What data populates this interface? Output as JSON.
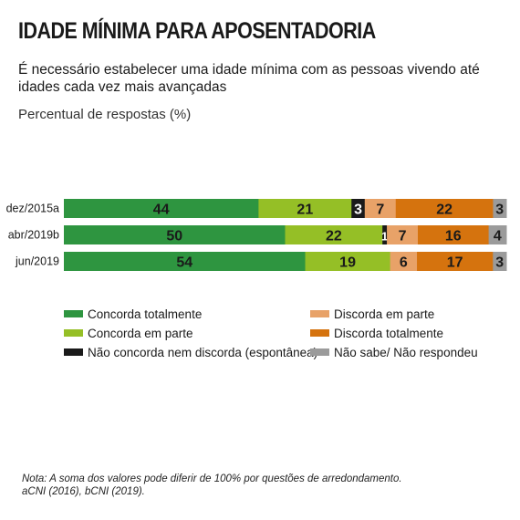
{
  "title": "IDADE MÍNIMA PARA APOSENTADORIA",
  "subtitle": "É necessário estabelecer uma idade mínima com as pessoas vivendo até idades cada vez mais avançadas",
  "unit_label": "Percentual de respostas (%)",
  "note": {
    "line1": "Nota: A soma dos valores pode diferir de 100% por questões de arredondamento.",
    "line2": "aCNI (2016), bCNI (2019)."
  },
  "chart_data": {
    "type": "bar",
    "orientation": "horizontal",
    "stacked": true,
    "categories": [
      "dez/2015a",
      "abr/2019b",
      "jun/2019"
    ],
    "series": [
      {
        "name": "Concorda totalmente",
        "color": "#2e9540",
        "values": [
          44,
          50,
          54
        ]
      },
      {
        "name": "Concorda em parte",
        "color": "#95bf26",
        "values": [
          21,
          22,
          19
        ]
      },
      {
        "name": "Não concorda nem discorda (espontânea)",
        "color": "#1a1a1a",
        "values": [
          3,
          1,
          0
        ]
      },
      {
        "name": "Discorda em parte",
        "color": "#e8a268",
        "values": [
          7,
          7,
          6
        ]
      },
      {
        "name": "Discorda totalmente",
        "color": "#d5730e",
        "values": [
          22,
          16,
          17
        ]
      },
      {
        "name": "Não sabe/ Não respondeu",
        "color": "#9b9b9b",
        "values": [
          3,
          4,
          3
        ]
      }
    ],
    "data_labels": [
      [
        "44",
        "21",
        "3",
        "7",
        "22",
        "3"
      ],
      [
        "50",
        "22",
        "1",
        "7",
        "16",
        "4"
      ],
      [
        "54",
        "19",
        "",
        "6",
        "17",
        "3"
      ]
    ],
    "legend": [
      {
        "label": "Concorda totalmente",
        "color": "#2e9540"
      },
      {
        "label": "Concorda em parte",
        "color": "#95bf26"
      },
      {
        "label": "Não concorda nem discorda (espontânea)",
        "color": "#1a1a1a"
      },
      {
        "label": "Discorda em parte",
        "color": "#e8a268"
      },
      {
        "label": "Discorda totalmente",
        "color": "#d5730e"
      },
      {
        "label": "Não sabe/ Não respondeu",
        "color": "#9b9b9b"
      }
    ],
    "legend_position": "bottom",
    "grid": false
  }
}
